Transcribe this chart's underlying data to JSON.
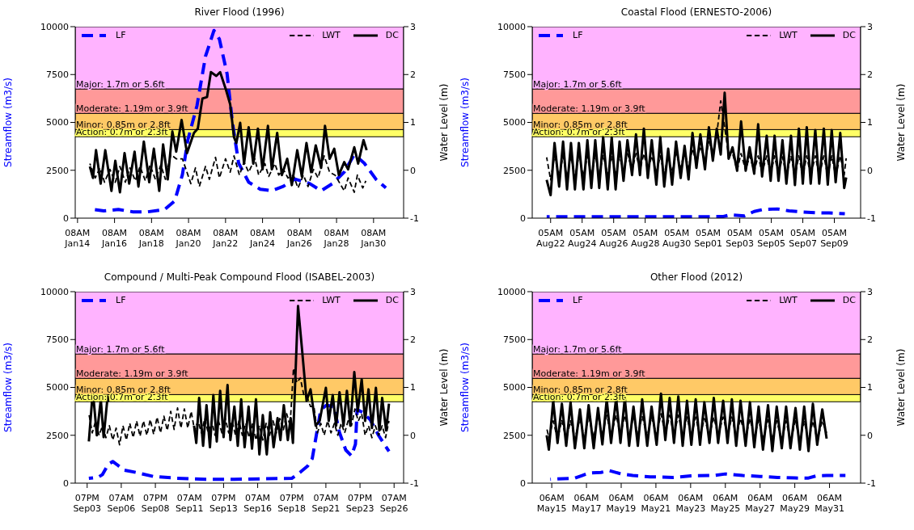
{
  "chart_data": [
    {
      "type": "line",
      "title": "River Flood (1996)",
      "ylabel": "Streamflow (m3/s)",
      "y2label": "Water Level (m)",
      "legend": "top",
      "line_style": "solid",
      "xlim": [
        "1996-01-14T05:00",
        "1996-01-31T23:00"
      ],
      "xticks": [
        {
          "value": "1996-01-14T08:00",
          "label": "08AM\nJan14"
        },
        {
          "value": "1996-01-16T08:00",
          "label": "08AM\nJan16"
        },
        {
          "value": "1996-01-18T08:00",
          "label": "08AM\nJan18"
        },
        {
          "value": "1996-01-20T08:00",
          "label": "08AM\nJan20"
        },
        {
          "value": "1996-01-22T08:00",
          "label": "08AM\nJan22"
        },
        {
          "value": "1996-01-24T08:00",
          "label": "08AM\nJan24"
        },
        {
          "value": "1996-01-26T08:00",
          "label": "08AM\nJan26"
        },
        {
          "value": "1996-01-28T08:00",
          "label": "08AM\nJan28"
        },
        {
          "value": "1996-01-30T08:00",
          "label": "08AM\nJan30"
        }
      ],
      "ylim": [
        0,
        10000
      ],
      "yticks": [
        0,
        2500,
        5000,
        7500,
        10000
      ],
      "y2lim": [
        -1,
        3
      ],
      "y2ticks": [
        -1,
        0,
        1,
        2,
        3
      ],
      "bands": [
        {
          "axis": "y2",
          "from": 0.7,
          "to": 0.85,
          "label": "Action: 0.7m or 2.3ft",
          "color": "#ffff66"
        },
        {
          "axis": "y2",
          "from": 0.85,
          "to": 1.19,
          "label": "Minor: 0.85m or 2.8ft",
          "color": "#ffc966"
        },
        {
          "axis": "y2",
          "from": 1.19,
          "to": 1.7,
          "label": "Moderate: 1.19m or 3.9ft",
          "color": "#ff9999"
        },
        {
          "axis": "y2",
          "from": 1.7,
          "to": 3,
          "label": "Major: 1.7m or 5.6ft",
          "color": "#ffb3ff"
        }
      ],
      "x": [
        "1996-01-15T00:00",
        "1996-01-15T04:00",
        "1996-01-15T08:00",
        "1996-01-15T14:00",
        "1996-01-15T20:00",
        "1996-01-16T04:00",
        "1996-01-16T09:00",
        "1996-01-16T15:00",
        "1996-01-16T21:00",
        "1996-01-17T03:00",
        "1996-01-17T10:00",
        "1996-01-17T15:00",
        "1996-01-17T22:00",
        "1996-01-18T05:00",
        "1996-01-18T11:00",
        "1996-01-18T18:00",
        "1996-01-18T23:00",
        "1996-01-19T05:00",
        "1996-01-19T11:00",
        "1996-01-19T16:00",
        "1996-01-19T23:00",
        "1996-01-20T06:00",
        "1996-01-20T15:00",
        "1996-01-20T20:00",
        "1996-01-21T02:00",
        "1996-01-21T08:00",
        "1996-01-21T13:00",
        "1996-01-21T20:00",
        "1996-01-22T01:00",
        "1996-01-22T08:00",
        "1996-01-22T14:00",
        "1996-01-22T19:00",
        "1996-01-22T22:00",
        "1996-01-23T03:00",
        "1996-01-23T08:00",
        "1996-01-23T14:00",
        "1996-01-23T20:00",
        "1996-01-24T02:00",
        "1996-01-24T08:00",
        "1996-01-24T15:00",
        "1996-01-24T20:00",
        "1996-01-25T03:00",
        "1996-01-25T09:00",
        "1996-01-25T16:00",
        "1996-01-25T22:00",
        "1996-01-26T05:00",
        "1996-01-26T11:00",
        "1996-01-26T17:00",
        "1996-01-26T23:00",
        "1996-01-27T05:00",
        "1996-01-27T12:00",
        "1996-01-27T17:00",
        "1996-01-27T23:00",
        "1996-01-28T05:00",
        "1996-01-28T11:00",
        "1996-01-28T18:00",
        "1996-01-28T23:00",
        "1996-01-29T07:00",
        "1996-01-29T12:00",
        "1996-01-29T19:00",
        "1996-01-29T23:00"
      ],
      "series": [
        {
          "name": "LF",
          "color": "#0000ff",
          "line_style": "dashed",
          "x": [
            "1996-01-15T05:00",
            "1996-01-15T18:00",
            "1996-01-16T13:00",
            "1996-01-17T08:00",
            "1996-01-18T03:00",
            "1996-01-19T01:00",
            "1996-01-19T14:00",
            "1996-01-20T00:00",
            "1996-01-20T07:00",
            "1996-01-20T19:00",
            "1996-01-21T06:00",
            "1996-01-21T17:00",
            "1996-01-22T00:00",
            "1996-01-22T10:00",
            "1996-01-22T17:00",
            "1996-01-23T01:00",
            "1996-01-23T14:00",
            "1996-01-24T05:00",
            "1996-01-24T20:00",
            "1996-01-25T11:00",
            "1996-01-26T02:00",
            "1996-01-26T21:00",
            "1996-01-27T12:00",
            "1996-01-28T03:00",
            "1996-01-28T18:00",
            "1996-01-29T07:00",
            "1996-01-29T20:00",
            "1996-01-30T11:00",
            "1996-01-31T00:00"
          ],
          "values": [
            450,
            380,
            450,
            330,
            330,
            450,
            900,
            2260,
            4070,
            5880,
            8450,
            9800,
            9350,
            7540,
            4980,
            2870,
            1880,
            1510,
            1430,
            1660,
            2040,
            1810,
            1430,
            1810,
            2410,
            3320,
            2870,
            2040,
            1580
          ]
        },
        {
          "name": "LWT",
          "color": "#000000",
          "line_style": "dashed",
          "axis": "y2",
          "x": [
            "1996-01-15T00:00",
            "1996-01-15T07:00",
            "1996-01-15T13:00",
            "1996-01-15T19:00",
            "1996-01-16T02:00",
            "1996-01-16T09:00",
            "1996-01-16T15:00",
            "1996-01-16T22:00",
            "1996-01-17T04:00",
            "1996-01-17T11:00",
            "1996-01-17T17:00",
            "1996-01-18T00:00",
            "1996-01-18T06:00",
            "1996-01-18T13:00",
            "1996-01-18T20:00",
            "1996-01-19T02:00",
            "1996-01-19T09:00",
            "1996-01-19T16:00",
            "1996-01-20T00:00",
            "1996-01-20T11:00",
            "1996-01-20T17:00",
            "1996-01-20T22:00",
            "1996-01-21T06:00",
            "1996-01-21T11:00",
            "1996-01-21T19:00",
            "1996-01-22T00:00",
            "1996-01-22T08:00",
            "1996-01-22T14:00",
            "1996-01-22T19:00",
            "1996-01-23T02:00",
            "1996-01-23T08:00",
            "1996-01-23T14:00",
            "1996-01-23T22:00",
            "1996-01-24T03:00",
            "1996-01-24T11:00",
            "1996-01-24T16:00",
            "1996-01-25T00:00",
            "1996-01-25T05:00",
            "1996-01-25T11:00",
            "1996-01-25T17:00",
            "1996-01-26T00:00",
            "1996-01-26T06:00",
            "1996-01-26T13:00",
            "1996-01-26T19:00",
            "1996-01-27T02:00",
            "1996-01-27T08:00",
            "1996-01-27T16:00",
            "1996-01-27T23:00",
            "1996-01-28T06:00",
            "1996-01-28T18:00",
            "1996-01-28T23:00",
            "1996-01-29T07:00",
            "1996-01-29T11:00",
            "1996-01-29T18:00",
            "1996-01-29T22:00"
          ],
          "values": [
            0.14,
            -0.16,
            0.05,
            -0.25,
            0.02,
            -0.25,
            0.08,
            -0.25,
            0.05,
            -0.22,
            0.08,
            -0.22,
            0.11,
            -0.19,
            0.11,
            -0.19,
            0.33,
            0.24,
            0.24,
            -0.28,
            0.05,
            -0.34,
            0.08,
            -0.19,
            0.27,
            -0.16,
            0.24,
            -0.04,
            0.3,
            -0.1,
            0.17,
            -0.04,
            0.24,
            -0.1,
            0.14,
            -0.13,
            0.14,
            -0.1,
            0.02,
            -0.16,
            -0.1,
            -0.37,
            -0.1,
            -0.34,
            0.02,
            -0.16,
            0.3,
            -0.04,
            -0.1,
            -0.43,
            -0.16,
            -0.46,
            -0.1,
            -0.37,
            -0.22
          ]
        },
        {
          "name": "DC",
          "color": "#000000",
          "axis": "y2",
          "values": [
            0.08,
            -0.16,
            0.42,
            -0.28,
            0.42,
            -0.43,
            0.2,
            -0.46,
            0.36,
            -0.28,
            0.39,
            -0.34,
            0.6,
            -0.25,
            0.45,
            -0.43,
            0.54,
            -0.19,
            0.81,
            0.39,
            1.05,
            0.36,
            0.78,
            0.87,
            1.5,
            1.53,
            2.05,
            1.97,
            2.05,
            1.71,
            1.38,
            0.69,
            0.57,
            0.99,
            0.14,
            0.9,
            0.14,
            0.87,
            0.02,
            0.93,
            0.02,
            0.78,
            -0.1,
            0.24,
            -0.31,
            0.42,
            -0.13,
            0.57,
            -0.04,
            0.52,
            0.05,
            0.93,
            0.24,
            0.45,
            -0.1,
            0.17,
            0.02,
            0.48,
            0.14,
            0.63,
            0.42
          ]
        }
      ]
    },
    {
      "type": "line",
      "title": "Coastal Flood (ERNESTO-2006)",
      "ylabel": "Streamflow (m3/s)",
      "y2label": "Water Level (m)",
      "legend": "top",
      "line_style": "solid",
      "xlim": [
        "2006-08-21T01:00",
        "2006-09-10T21:00"
      ],
      "xticks": [
        {
          "value": "2006-08-22T05:00",
          "label": "05AM\nAug22"
        },
        {
          "value": "2006-08-24T05:00",
          "label": "05AM\nAug24"
        },
        {
          "value": "2006-08-26T05:00",
          "label": "05AM\nAug26"
        },
        {
          "value": "2006-08-28T05:00",
          "label": "05AM\nAug28"
        },
        {
          "value": "2006-08-30T05:00",
          "label": "05AM\nAug30"
        },
        {
          "value": "2006-09-01T05:00",
          "label": "05AM\nSep01"
        },
        {
          "value": "2006-09-03T05:00",
          "label": "05AM\nSep03"
        },
        {
          "value": "2006-09-05T05:00",
          "label": "05AM\nSep05"
        },
        {
          "value": "2006-09-07T05:00",
          "label": "05AM\nSep07"
        },
        {
          "value": "2006-09-09T05:00",
          "label": "05AM\nSep09"
        }
      ],
      "ylim": [
        0,
        10000
      ],
      "yticks": [
        0,
        2500,
        5000,
        7500,
        10000
      ],
      "y2lim": [
        -1,
        3
      ],
      "y2ticks": [
        -1,
        0,
        1,
        2,
        3
      ],
      "bands": [
        {
          "axis": "y2",
          "from": 0.7,
          "to": 0.85,
          "label": "Action: 0.7m or 2.3ft",
          "color": "#ffff66"
        },
        {
          "axis": "y2",
          "from": 0.85,
          "to": 1.19,
          "label": "Minor: 0.85m or 2.8ft",
          "color": "#ffc966"
        },
        {
          "axis": "y2",
          "from": 1.19,
          "to": 1.7,
          "label": "Moderate: 1.19m or 3.9ft",
          "color": "#ff9999"
        },
        {
          "axis": "y2",
          "from": 1.7,
          "to": 3,
          "label": "Major: 1.7m or 5.6ft",
          "color": "#ffb3ff"
        }
      ],
      "x": [
        "2006-08-21T23:00",
        "2006-08-22T05:00",
        "2006-08-22T11:00",
        "2006-08-22T18:00",
        "2006-08-23T00:00",
        "2006-08-23T06:00",
        "2006-08-23T12:00",
        "2006-08-23T18:00",
        "2006-08-24T00:00",
        "2006-08-24T07:00",
        "2006-08-24T13:00",
        "2006-08-24T19:00",
        "2006-08-25T01:00",
        "2006-08-25T07:00",
        "2006-08-25T13:00",
        "2006-08-25T20:00",
        "2006-08-26T02:00",
        "2006-08-26T08:00",
        "2006-08-26T14:00",
        "2006-08-26T20:00",
        "2006-08-27T02:00",
        "2006-08-27T09:00",
        "2006-08-27T15:00",
        "2006-08-27T21:00",
        "2006-08-28T03:00",
        "2006-08-28T09:00",
        "2006-08-28T15:00",
        "2006-08-28T22:00",
        "2006-08-29T04:00",
        "2006-08-29T10:00",
        "2006-08-29T16:00",
        "2006-08-29T22:00",
        "2006-08-30T04:00",
        "2006-08-30T11:00",
        "2006-08-30T17:00",
        "2006-08-30T23:00",
        "2006-08-31T05:00",
        "2006-08-31T11:00",
        "2006-08-31T17:00",
        "2006-09-01T00:00",
        "2006-09-01T06:00",
        "2006-09-01T12:00",
        "2006-09-01T18:00",
        "2006-09-02T00:00",
        "2006-09-02T06:00",
        "2006-09-02T12:00",
        "2006-09-02T18:00",
        "2006-09-03T01:00",
        "2006-09-03T07:00",
        "2006-09-03T14:00",
        "2006-09-03T20:00",
        "2006-09-04T03:00",
        "2006-09-04T09:00",
        "2006-09-04T15:00",
        "2006-09-04T22:00",
        "2006-09-05T04:00",
        "2006-09-05T10:00",
        "2006-09-05T16:00",
        "2006-09-05T22:00",
        "2006-09-06T04:00",
        "2006-09-06T11:00",
        "2006-09-06T17:00",
        "2006-09-06T23:00",
        "2006-09-07T05:00",
        "2006-09-07T11:00",
        "2006-09-07T17:00",
        "2006-09-08T00:00",
        "2006-09-08T06:00",
        "2006-09-08T13:00",
        "2006-09-08T19:00",
        "2006-09-09T01:00",
        "2006-09-09T07:00",
        "2006-09-09T14:00",
        "2006-09-09T20:00",
        "2006-09-09T23:00"
      ],
      "series": [
        {
          "name": "LF",
          "color": "#0000ff",
          "line_style": "dashed",
          "x": [
            "2006-08-21T23:00",
            "2006-08-27T01:00",
            "2006-09-02T03:00",
            "2006-09-02T14:00",
            "2006-09-03T12:00",
            "2006-09-04T03:00",
            "2006-09-04T16:00",
            "2006-09-05T14:00",
            "2006-09-06T08:00",
            "2006-09-07T06:00",
            "2006-09-08T03:00",
            "2006-09-08T21:00",
            "2006-09-09T21:00"
          ],
          "values": [
            70,
            70,
            80,
            170,
            120,
            350,
            450,
            480,
            380,
            320,
            280,
            270,
            230
          ]
        },
        {
          "name": "LWT",
          "color": "#000000",
          "line_style": "dashed",
          "axis": "y2",
          "values": [
            0.27,
            -0.2,
            0.3,
            -0.12,
            0.3,
            -0.15,
            0.3,
            -0.15,
            0.3,
            -0.12,
            0.3,
            -0.12,
            0.32,
            -0.1,
            0.32,
            -0.1,
            0.3,
            -0.1,
            0.3,
            -0.05,
            0.35,
            0,
            0.35,
            0,
            0.35,
            0,
            0.3,
            -0.05,
            0.3,
            -0.08,
            0.3,
            -0.05,
            0.35,
            0.05,
            0.38,
            0.05,
            0.45,
            0.15,
            0.5,
            0.2,
            0.6,
            0.35,
            0.75,
            1.45,
            0.9,
            0.3,
            0.35,
            0,
            0.35,
            0,
            0.3,
            -0.02,
            0.3,
            -0.05,
            0.3,
            -0.1,
            0.3,
            -0.1,
            0.28,
            -0.1,
            0.3,
            -0.12,
            0.3,
            -0.12,
            0.3,
            -0.12,
            0.3,
            -0.12,
            0.3,
            -0.12,
            0.3,
            -0.12,
            0.3,
            -0.1,
            0.25
          ]
        },
        {
          "name": "DC",
          "color": "#000000",
          "axis": "y2",
          "values": [
            -0.2,
            -0.52,
            0.57,
            -0.34,
            0.6,
            -0.4,
            0.57,
            -0.4,
            0.57,
            -0.4,
            0.63,
            -0.37,
            0.63,
            -0.37,
            0.69,
            -0.4,
            0.69,
            -0.4,
            0.6,
            -0.22,
            0.63,
            -0.1,
            0.75,
            -0.1,
            0.87,
            -0.16,
            0.63,
            -0.3,
            0.69,
            -0.34,
            0.45,
            -0.3,
            0.6,
            -0.16,
            0.51,
            -0.19,
            0.78,
            0.05,
            0.75,
            0.02,
            0.9,
            0.2,
            0.87,
            0.33,
            1.62,
            0.24,
            0.48,
            -0.01,
            1.02,
            -0.01,
            0.48,
            -0.07,
            0.96,
            -0.13,
            0.72,
            -0.22,
            0.72,
            -0.22,
            0.63,
            -0.28,
            0.72,
            -0.31,
            0.87,
            -0.28,
            0.9,
            -0.28,
            0.84,
            -0.28,
            0.87,
            -0.3,
            0.84,
            -0.25,
            0.78,
            -0.37,
            -0.15
          ]
        }
      ]
    },
    {
      "type": "line",
      "title": "Compound / Multi-Peak Compound Flood (ISABEL-2003)",
      "ylabel": "Streamflow (m3/s)",
      "y2label": "Water Level (m)",
      "legend": "top",
      "line_style": "solid",
      "xlim": [
        "2003-09-02T22:00",
        "2003-09-26T23:45"
      ],
      "xticks": [
        {
          "value": "2003-09-03T19:00",
          "label": "07PM\nSep03"
        },
        {
          "value": "2003-09-06T07:00",
          "label": "07AM\nSep06"
        },
        {
          "value": "2003-09-08T19:00",
          "label": "07PM\nSep08"
        },
        {
          "value": "2003-09-11T07:00",
          "label": "07AM\nSep11"
        },
        {
          "value": "2003-09-13T19:00",
          "label": "07PM\nSep13"
        },
        {
          "value": "2003-09-16T07:00",
          "label": "07AM\nSep16"
        },
        {
          "value": "2003-09-18T19:00",
          "label": "07PM\nSep18"
        },
        {
          "value": "2003-09-21T07:00",
          "label": "07AM\nSep21"
        },
        {
          "value": "2003-09-23T19:00",
          "label": "07PM\nSep23"
        },
        {
          "value": "2003-09-26T07:00",
          "label": "07AM\nSep26"
        }
      ],
      "ylim": [
        0,
        10000
      ],
      "yticks": [
        0,
        2500,
        5000,
        7500,
        10000
      ],
      "y2lim": [
        -1,
        3
      ],
      "y2ticks": [
        -1,
        0,
        1,
        2,
        3
      ],
      "bands": [
        {
          "axis": "y2",
          "from": 0.7,
          "to": 0.85,
          "label": "Action: 0.7m or 2.3ft",
          "color": "#ffff66"
        },
        {
          "axis": "y2",
          "from": 0.85,
          "to": 1.19,
          "label": "Minor: 0.85m or 2.8ft",
          "color": "#ffc966"
        },
        {
          "axis": "y2",
          "from": 1.19,
          "to": 1.7,
          "label": "Moderate: 1.19m or 3.9ft",
          "color": "#ff9999"
        },
        {
          "axis": "y2",
          "from": 1.7,
          "to": 3,
          "label": "Major: 1.7m or 5.6ft",
          "color": "#ffb3ff"
        }
      ],
      "x": [
        "2003-09-03T22:00",
        "2003-09-04T05:00",
        "2003-09-04T12:00",
        "2003-09-04T19:00",
        "2003-09-05T00:00",
        "2003-09-05T07:00",
        "2003-09-05T08:00",
        "2003-09-08T00:00",
        "2003-09-11T15:00",
        "2003-09-11T19:00",
        "2003-09-12T00:00",
        "2003-09-12T07:00",
        "2003-09-12T13:00",
        "2003-09-12T19:00",
        "2003-09-13T01:00",
        "2003-09-13T07:00",
        "2003-09-13T13:00",
        "2003-09-13T19:00",
        "2003-09-14T02:00",
        "2003-09-14T07:00",
        "2003-09-14T14:00",
        "2003-09-14T20:00",
        "2003-09-15T02:00",
        "2003-09-15T08:00",
        "2003-09-15T15:00",
        "2003-09-15T21:00",
        "2003-09-16T04:00",
        "2003-09-16T10:00",
        "2003-09-16T16:00",
        "2003-09-16T23:00",
        "2003-09-17T05:00",
        "2003-09-17T11:00",
        "2003-09-17T18:00",
        "2003-09-17T23:00",
        "2003-09-18T05:00",
        "2003-09-18T12:00",
        "2003-09-18T17:00",
        "2003-09-18T21:00",
        "2003-09-19T06:00",
        "2003-09-19T13:00",
        "2003-09-19T21:00",
        "2003-09-20T04:00",
        "2003-09-20T13:00",
        "2003-09-20T20:00",
        "2003-09-21T07:00",
        "2003-09-21T12:00",
        "2003-09-21T19:00",
        "2003-09-22T01:00",
        "2003-09-22T07:00",
        "2003-09-22T14:00",
        "2003-09-22T20:00",
        "2003-09-23T02:00",
        "2003-09-23T09:00",
        "2003-09-23T15:00",
        "2003-09-23T22:00",
        "2003-09-24T04:00",
        "2003-09-24T10:00",
        "2003-09-24T16:00",
        "2003-09-24T23:00",
        "2003-09-25T05:00",
        "2003-09-25T10:00",
        "2003-09-25T17:00",
        "2003-09-25T22:00"
      ],
      "series": [
        {
          "name": "LF",
          "color": "#0000ff",
          "line_style": "dashed",
          "x": [
            "2003-09-03T22:00",
            "2003-09-04T14:00",
            "2003-09-04T22:00",
            "2003-09-05T08:00",
            "2003-09-05T16:00",
            "2003-09-05T23:00",
            "2003-09-06T12:00",
            "2003-09-07T09:00",
            "2003-09-08T15:00",
            "2003-09-10T08:00",
            "2003-09-12T11:00",
            "2003-09-14T14:00",
            "2003-09-16T16:00",
            "2003-09-18T19:00",
            "2003-09-19T11:00",
            "2003-09-19T23:00",
            "2003-09-20T07:00",
            "2003-09-20T15:00",
            "2003-09-20T22:00",
            "2003-09-21T08:00",
            "2003-09-21T21:00",
            "2003-09-22T07:00",
            "2003-09-22T18:00",
            "2003-09-23T04:00",
            "2003-09-23T11:00",
            "2003-09-23T14:00",
            "2003-09-24T00:00",
            "2003-09-24T13:00",
            "2003-09-25T04:00",
            "2003-09-25T22:00"
          ],
          "values": [
            250,
            300,
            450,
            980,
            1130,
            980,
            680,
            560,
            350,
            260,
            200,
            200,
            230,
            250,
            600,
            900,
            1280,
            2640,
            3840,
            4070,
            3990,
            2640,
            1730,
            1430,
            2030,
            3840,
            3690,
            3310,
            2480,
            1660
          ]
        },
        {
          "name": "LWT",
          "color": "#000000",
          "line_style": "dashed",
          "axis": "y2",
          "x": [
            "2003-09-03T22:00",
            "2003-09-04T04:00",
            "2003-09-04T10:00",
            "2003-09-04T16:00",
            "2003-09-04T22:00",
            "2003-09-05T04:00",
            "2003-09-05T10:00",
            "2003-09-05T16:00",
            "2003-09-05T22:00",
            "2003-09-06T04:00",
            "2003-09-06T10:00",
            "2003-09-06T16:00",
            "2003-09-06T22:00",
            "2003-09-07T04:00",
            "2003-09-07T10:00",
            "2003-09-07T16:00",
            "2003-09-07T22:00",
            "2003-09-08T04:00",
            "2003-09-08T10:00",
            "2003-09-08T16:00",
            "2003-09-08T22:00",
            "2003-09-09T04:00",
            "2003-09-09T10:00",
            "2003-09-09T16:00",
            "2003-09-09T22:00",
            "2003-09-10T04:00",
            "2003-09-10T10:00",
            "2003-09-10T16:00",
            "2003-09-10T22:00",
            "2003-09-11T04:00",
            "2003-09-11T10:00",
            "2003-09-11T16:00",
            "2003-09-11T22:00",
            "2003-09-12T04:00",
            "2003-09-12T10:00",
            "2003-09-12T16:00",
            "2003-09-12T22:00",
            "2003-09-13T04:00",
            "2003-09-13T10:00",
            "2003-09-13T16:00",
            "2003-09-13T22:00",
            "2003-09-14T04:00",
            "2003-09-14T10:00",
            "2003-09-14T16:00",
            "2003-09-14T22:00",
            "2003-09-15T04:00",
            "2003-09-15T10:00",
            "2003-09-15T16:00",
            "2003-09-15T22:00",
            "2003-09-16T04:00",
            "2003-09-16T10:00",
            "2003-09-16T16:00",
            "2003-09-16T22:00",
            "2003-09-17T04:00",
            "2003-09-17T10:00",
            "2003-09-17T16:00",
            "2003-09-17T22:00",
            "2003-09-18T04:00",
            "2003-09-18T10:00",
            "2003-09-18T16:00",
            "2003-09-18T22:00",
            "2003-09-19T04:00",
            "2003-09-19T10:00",
            "2003-09-19T16:00",
            "2003-09-19T22:00",
            "2003-09-20T04:00",
            "2003-09-20T10:00",
            "2003-09-20T16:00",
            "2003-09-20T22:00",
            "2003-09-21T04:00",
            "2003-09-21T10:00",
            "2003-09-21T16:00",
            "2003-09-21T22:00",
            "2003-09-22T04:00",
            "2003-09-22T10:00",
            "2003-09-22T16:00",
            "2003-09-22T22:00",
            "2003-09-23T04:00",
            "2003-09-23T10:00",
            "2003-09-23T16:00",
            "2003-09-23T22:00",
            "2003-09-24T04:00",
            "2003-09-24T10:00",
            "2003-09-24T16:00",
            "2003-09-24T22:00",
            "2003-09-25T04:00",
            "2003-09-25T10:00",
            "2003-09-25T16:00",
            "2003-09-25T22:00"
          ],
          "values": [
            0.45,
            0.05,
            0.3,
            0,
            0.2,
            -0.05,
            0.2,
            -0.1,
            0.15,
            -0.2,
            0.2,
            -0.1,
            0.25,
            -0.05,
            0.3,
            -0.02,
            0.3,
            0,
            0.33,
            0.02,
            0.38,
            0.05,
            0.4,
            0.1,
            0.5,
            0.12,
            0.57,
            0.15,
            0.55,
            0.15,
            0.5,
            0.1,
            0.3,
            0.05,
            0.35,
            0.05,
            0.3,
            0,
            0.3,
            0.05,
            0.35,
            0.05,
            0.3,
            0,
            0.3,
            0,
            0.25,
            -0.05,
            0.25,
            -0.1,
            0.2,
            -0.1,
            0.25,
            0,
            0.3,
            0.05,
            0.35,
            0.1,
            0.45,
            0.2,
            1.4,
            1.1,
            1.2,
            0.85,
            0.8,
            0.6,
            0.6,
            0.05,
            0.25,
            0,
            0.3,
            0.05,
            0.25,
            0,
            0.25,
            0.05,
            0.3,
            0.2,
            0.55,
            0.3,
            0.45,
            0,
            0.2,
            -0.05,
            0.2,
            0,
            0.2,
            -0.05,
            0.3
          ]
        },
        {
          "name": "DC",
          "color": "#000000",
          "axis": "y2",
          "values": [
            -0.13,
            0.93,
            0,
            0.75,
            -0.04,
            0.81,
            0.7,
            null,
            0.2,
            -0.16,
            0.78,
            -0.22,
            0.63,
            -0.25,
            0.84,
            -0.13,
            0.93,
            -0.04,
            1.05,
            -0.1,
            0.6,
            -0.22,
            0.75,
            -0.25,
            0.6,
            -0.28,
            0.75,
            -0.4,
            0.42,
            -0.4,
            0.48,
            -0.25,
            0.36,
            -0.1,
            0.63,
            -0.1,
            0.36,
            -0.16,
            2.7,
            1.8,
            0.72,
            0.96,
            0.2,
            0.3,
            0.99,
            0.3,
            0.84,
            0.2,
            0.9,
            0.2,
            0.93,
            0.2,
            1.32,
            0.5,
            1.17,
            0.3,
            0.96,
            0.15,
            0.99,
            0.1,
            0.78,
            0.1,
            0.66
          ]
        }
      ]
    },
    {
      "type": "line",
      "title": "Other Flood (2012)",
      "ylabel": "Streamflow (m3/s)",
      "y2label": "Water Level (m)",
      "legend": "top",
      "line_style": "solid",
      "xlim": [
        "2012-05-14T03:00",
        "2012-06-02T01:00"
      ],
      "xticks": [
        {
          "value": "2012-05-15T06:00",
          "label": "06AM\nMay15"
        },
        {
          "value": "2012-05-17T06:00",
          "label": "06AM\nMay17"
        },
        {
          "value": "2012-05-19T06:00",
          "label": "06AM\nMay19"
        },
        {
          "value": "2012-05-21T06:00",
          "label": "06AM\nMay21"
        },
        {
          "value": "2012-05-23T06:00",
          "label": "06AM\nMay23"
        },
        {
          "value": "2012-05-25T06:00",
          "label": "06AM\nMay25"
        },
        {
          "value": "2012-05-27T06:00",
          "label": "06AM\nMay27"
        },
        {
          "value": "2012-05-29T06:00",
          "label": "06AM\nMay29"
        },
        {
          "value": "2012-05-31T06:00",
          "label": "06AM\nMay31"
        }
      ],
      "ylim": [
        0,
        10000
      ],
      "yticks": [
        0,
        2500,
        5000,
        7500,
        10000
      ],
      "y2lim": [
        -1,
        3
      ],
      "y2ticks": [
        -1,
        0,
        1,
        2,
        3
      ],
      "bands": [
        {
          "axis": "y2",
          "from": 0.7,
          "to": 0.85,
          "label": "Action: 0.7m or 2.3ft",
          "color": "#ffff66"
        },
        {
          "axis": "y2",
          "from": 0.85,
          "to": 1.19,
          "label": "Minor: 0.85m or 2.8ft",
          "color": "#ffc966"
        },
        {
          "axis": "y2",
          "from": 1.19,
          "to": 1.7,
          "label": "Moderate: 1.19m or 3.9ft",
          "color": "#ff9999"
        },
        {
          "axis": "y2",
          "from": 1.7,
          "to": 3,
          "label": "Major: 1.7m or 5.6ft",
          "color": "#ffb3ff"
        }
      ],
      "x": [
        "2012-05-14T23:00",
        "2012-05-15T02:00",
        "2012-05-15T08:00",
        "2012-05-15T14:00",
        "2012-05-15T20:00",
        "2012-05-16T02:00",
        "2012-05-16T08:00",
        "2012-05-16T14:00",
        "2012-05-16T21:00",
        "2012-05-17T03:00",
        "2012-05-17T09:00",
        "2012-05-17T16:00",
        "2012-05-17T22:00",
        "2012-05-18T04:00",
        "2012-05-18T10:00",
        "2012-05-18T16:00",
        "2012-05-18T23:00",
        "2012-05-19T05:00",
        "2012-05-19T11:00",
        "2012-05-19T17:00",
        "2012-05-19T23:00",
        "2012-05-20T05:00",
        "2012-05-20T11:00",
        "2012-05-20T18:00",
        "2012-05-21T00:00",
        "2012-05-21T07:00",
        "2012-05-21T13:00",
        "2012-05-21T19:00",
        "2012-05-22T01:00",
        "2012-05-22T07:00",
        "2012-05-22T13:00",
        "2012-05-22T19:00",
        "2012-05-23T01:00",
        "2012-05-23T07:00",
        "2012-05-23T13:00",
        "2012-05-23T19:00",
        "2012-05-24T01:00",
        "2012-05-24T08:00",
        "2012-05-24T14:00",
        "2012-05-24T20:00",
        "2012-05-25T03:00",
        "2012-05-25T09:00",
        "2012-05-25T15:00",
        "2012-05-25T21:00",
        "2012-05-26T03:00",
        "2012-05-26T10:00",
        "2012-05-26T16:00",
        "2012-05-26T22:00",
        "2012-05-27T04:00",
        "2012-05-27T10:00",
        "2012-05-27T17:00",
        "2012-05-27T23:00",
        "2012-05-28T05:00",
        "2012-05-28T12:00",
        "2012-05-28T18:00",
        "2012-05-29T00:00",
        "2012-05-29T07:00",
        "2012-05-29T13:00",
        "2012-05-29T19:00",
        "2012-05-30T01:00",
        "2012-05-30T07:00",
        "2012-05-30T13:00",
        "2012-05-30T20:00",
        "2012-05-31T02:00"
      ],
      "series": [
        {
          "name": "LF",
          "color": "#0000ff",
          "line_style": "dashed",
          "x": [
            "2012-05-15T04:00",
            "2012-05-16T14:00",
            "2012-05-17T00:00",
            "2012-05-17T10:00",
            "2012-05-18T02:00",
            "2012-05-18T14:00",
            "2012-05-19T06:00",
            "2012-05-19T22:00",
            "2012-05-20T22:00",
            "2012-05-22T06:00",
            "2012-05-23T06:00",
            "2012-05-24T14:00",
            "2012-05-25T06:00",
            "2012-05-26T06:00",
            "2012-05-27T06:00",
            "2012-05-28T06:00",
            "2012-05-29T06:00",
            "2012-05-30T00:00",
            "2012-05-30T12:00",
            "2012-05-31T02:00",
            "2012-06-01T04:00"
          ],
          "values": [
            200,
            260,
            400,
            530,
            560,
            650,
            480,
            400,
            330,
            300,
            380,
            400,
            480,
            400,
            350,
            300,
            270,
            260,
            380,
            400,
            400
          ]
        },
        {
          "name": "LWT",
          "color": "#000000",
          "line_style": "dashed",
          "axis": "y2",
          "values": [
            0.15,
            -0.05,
            0.3,
            -0.08,
            0.32,
            -0.1,
            0.3,
            -0.08,
            0.35,
            -0.05,
            0.38,
            -0.05,
            0.4,
            0,
            0.42,
            0,
            0.42,
            0,
            0.42,
            -0.02,
            0.4,
            0,
            0.4,
            -0.02,
            0.38,
            0,
            0.45,
            0.02,
            0.42,
            0,
            0.42,
            -0.02,
            0.38,
            -0.02,
            0.38,
            -0.02,
            0.35,
            0,
            0.38,
            0,
            0.38,
            0,
            0.38,
            -0.02,
            0.35,
            -0.05,
            0.35,
            -0.05,
            0.32,
            -0.08,
            0.32,
            -0.1,
            0.3,
            -0.1,
            0.3,
            -0.12,
            0.3,
            -0.12,
            0.3,
            -0.12,
            0.3,
            -0.1,
            0.3,
            0.05
          ]
        },
        {
          "name": "DC",
          "color": "#000000",
          "axis": "y2",
          "values": [
            0,
            -0.3,
            0.72,
            -0.16,
            0.66,
            -0.22,
            0.69,
            -0.27,
            0.54,
            -0.27,
            0.63,
            -0.27,
            0.57,
            -0.19,
            0.75,
            -0.16,
            0.78,
            -0.16,
            0.78,
            -0.22,
            0.6,
            -0.22,
            0.75,
            -0.22,
            0.6,
            -0.2,
            0.87,
            -0.1,
            0.78,
            -0.16,
            0.81,
            -0.22,
            0.72,
            -0.2,
            0.75,
            -0.2,
            0.69,
            -0.16,
            0.78,
            -0.16,
            0.72,
            -0.16,
            0.75,
            -0.22,
            0.72,
            -0.22,
            0.69,
            -0.25,
            0.6,
            -0.3,
            0.63,
            -0.33,
            0.6,
            -0.27,
            0.6,
            -0.27,
            0.57,
            -0.3,
            0.6,
            -0.33,
            0.66,
            -0.2,
            0.54,
            -0.07
          ]
        }
      ]
    }
  ]
}
